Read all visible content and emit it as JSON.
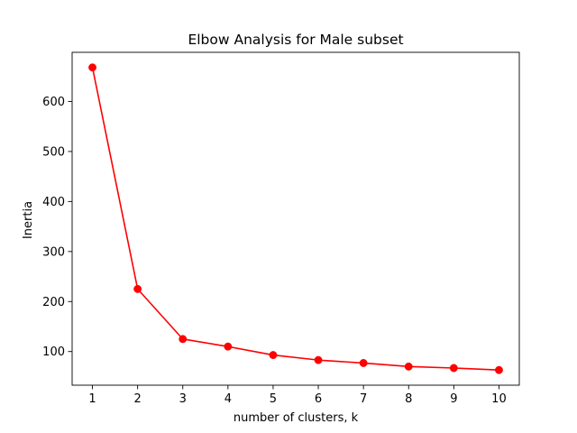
{
  "chart_data": {
    "type": "line",
    "title": "Elbow Analysis for Male subset",
    "xlabel": "number of clusters, k",
    "ylabel": "Inertia",
    "x": [
      1,
      2,
      3,
      4,
      5,
      6,
      7,
      8,
      9,
      10
    ],
    "series": [
      {
        "values": [
          668,
          225,
          125,
          110,
          93,
          83,
          77,
          70,
          67,
          63
        ],
        "color": "#ff0000",
        "marker": "circle"
      }
    ],
    "xticks": [
      "1",
      "2",
      "3",
      "4",
      "5",
      "6",
      "7",
      "8",
      "9",
      "10"
    ],
    "yticks": [
      "100",
      "200",
      "300",
      "400",
      "500",
      "600"
    ],
    "xlim": [
      0.55,
      10.45
    ],
    "ylim": [
      32.75,
      698.25
    ],
    "grid": false,
    "legend": "none"
  }
}
